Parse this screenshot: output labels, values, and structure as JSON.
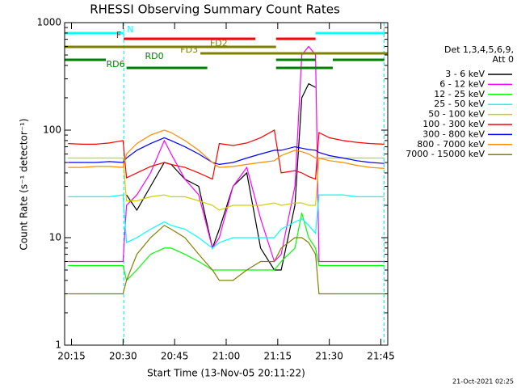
{
  "chart_data": {
    "type": "line",
    "title": "RHESSI Observing Summary Count Rates",
    "xlabel": "Start Time (13-Nov-05 20:11:22)",
    "ylabel": "Count Rate (s⁻¹ detector⁻¹)",
    "footer": "21-Oct-2021 02:25",
    "legend_title": [
      "Det 1,3,4,5,6,9,",
      "Att 0"
    ],
    "log_y": true,
    "xlim": [
      13,
      107
    ],
    "ylim": [
      1,
      1000
    ],
    "xticks": [
      {
        "value": 15,
        "label": "20:15"
      },
      {
        "value": 30,
        "label": "20:30"
      },
      {
        "value": 45,
        "label": "20:45"
      },
      {
        "value": 60,
        "label": "21:00"
      },
      {
        "value": 75,
        "label": "21:15"
      },
      {
        "value": 90,
        "label": "21:30"
      },
      {
        "value": 105,
        "label": "21:45"
      }
    ],
    "yticks": [
      1,
      10,
      100,
      1000
    ],
    "yminorticks": [
      2,
      3,
      4,
      5,
      6,
      7,
      8,
      9,
      20,
      30,
      40,
      50,
      60,
      70,
      80,
      90,
      200,
      300,
      400,
      500,
      600,
      700,
      800,
      900
    ],
    "markers": {
      "color": "#00e5e5",
      "x": [
        30.2,
        105.9
      ]
    },
    "x": [
      14,
      18,
      22,
      26,
      30,
      31,
      34,
      38,
      42,
      44,
      48,
      52,
      56,
      58,
      62,
      66,
      70,
      74,
      76,
      80,
      82,
      84,
      86,
      87,
      90,
      94,
      98,
      102,
      106
    ],
    "series": [
      {
        "name": "3 - 6 keV",
        "color": "#000000",
        "values": [
          null,
          null,
          null,
          null,
          null,
          25,
          18,
          30,
          50,
          48,
          35,
          30,
          8,
          12,
          30,
          40,
          8,
          5,
          5,
          20,
          200,
          270,
          250,
          null,
          null,
          null,
          null,
          null,
          null
        ]
      },
      {
        "name": "6 - 12 keV",
        "color": "#ff00ff",
        "values": [
          6,
          6,
          6,
          6,
          6,
          20,
          25,
          40,
          80,
          60,
          35,
          25,
          8,
          10,
          30,
          45,
          15,
          6,
          7,
          30,
          500,
          600,
          500,
          6,
          6,
          6,
          6,
          6,
          6
        ]
      },
      {
        "name": "12 - 25 keV",
        "color": "#00ff00",
        "values": [
          5.5,
          5.5,
          5.5,
          5.5,
          5.5,
          4,
          5,
          7,
          8,
          8,
          7,
          6,
          5,
          5,
          5,
          5,
          5,
          5,
          6,
          8,
          17,
          10,
          8,
          5.5,
          5.5,
          5.5,
          5.5,
          5.5,
          5.5
        ]
      },
      {
        "name": "25 - 50 keV",
        "color": "#00ffff",
        "values": [
          24,
          24,
          24,
          24,
          25,
          9,
          10,
          12,
          14,
          13,
          12,
          10,
          8,
          9,
          10,
          10,
          10,
          10,
          12,
          14,
          15,
          13,
          11,
          25,
          25,
          25,
          24,
          24,
          24
        ]
      },
      {
        "name": "50 - 100 keV",
        "color": "#d0d000",
        "values": [
          55,
          55,
          55,
          55,
          55,
          22,
          22,
          24,
          25,
          24,
          24,
          22,
          20,
          18,
          20,
          20,
          20,
          21,
          20,
          21,
          21,
          20,
          20,
          55,
          55,
          55,
          55,
          55,
          55
        ]
      },
      {
        "name": "100 - 300 keV",
        "color": "#ff0000",
        "values": [
          75,
          74,
          74,
          76,
          80,
          36,
          40,
          46,
          50,
          48,
          45,
          40,
          35,
          75,
          72,
          76,
          85,
          100,
          40,
          42,
          40,
          37,
          35,
          95,
          85,
          80,
          77,
          75,
          74
        ]
      },
      {
        "name": "300 - 800 keV",
        "color": "#0000ff",
        "values": [
          50,
          50,
          50,
          51,
          50,
          55,
          65,
          75,
          85,
          80,
          70,
          60,
          50,
          48,
          50,
          55,
          60,
          65,
          65,
          70,
          68,
          66,
          65,
          62,
          58,
          55,
          52,
          50,
          49
        ]
      },
      {
        "name": "800 - 7000 keV",
        "color": "#ff8c00",
        "values": [
          45,
          45,
          46,
          46,
          45,
          60,
          75,
          90,
          100,
          95,
          80,
          65,
          50,
          45,
          46,
          48,
          50,
          52,
          58,
          65,
          63,
          60,
          55,
          55,
          52,
          50,
          47,
          45,
          44
        ]
      },
      {
        "name": "7000 - 15000 keV",
        "color": "#808000",
        "values": [
          3,
          3,
          3,
          3,
          3,
          4,
          7,
          10,
          13,
          12,
          10,
          7,
          5,
          4,
          4,
          5,
          6,
          6,
          8,
          10,
          10,
          9,
          7,
          3,
          3,
          3,
          3,
          3,
          3
        ]
      }
    ],
    "flags": [
      {
        "name": "N",
        "color": "#00ffff",
        "segments": [
          [
            13,
            30.2
          ],
          [
            86,
            106
          ]
        ]
      },
      {
        "name": "F",
        "color": "#ff0000",
        "segments": [
          [
            30.2,
            68.5
          ],
          [
            74.5,
            86
          ]
        ]
      },
      {
        "name": "FD2",
        "color": "#808000",
        "segments": [
          [
            13,
            74.5
          ]
        ]
      },
      {
        "name": "FD3",
        "color": "#808000",
        "segments": [
          [
            52.5,
            107
          ]
        ]
      },
      {
        "name": "RD0",
        "color": "#008000",
        "segments": [
          [
            13,
            25
          ],
          [
            74.5,
            86
          ],
          [
            91,
            106
          ]
        ]
      },
      {
        "name": "RD6",
        "color": "#008000",
        "segments": [
          [
            31,
            54.5
          ],
          [
            74.5,
            91
          ]
        ]
      }
    ]
  }
}
